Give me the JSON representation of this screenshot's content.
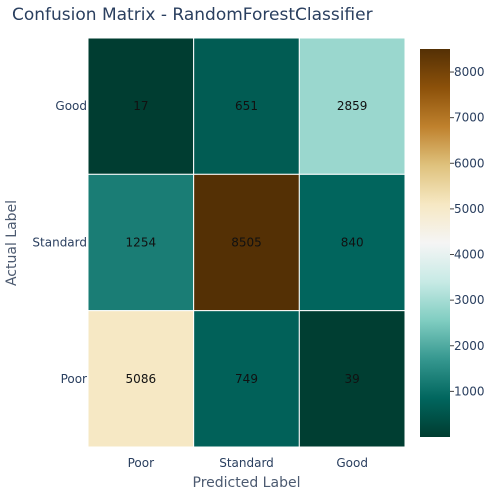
{
  "chart_data": {
    "type": "heatmap",
    "title": "Confusion Matrix - RandomForestClassifier",
    "xlabel": "Predicted Label",
    "ylabel": "Actual Label",
    "x_categories": [
      "Poor",
      "Standard",
      "Good"
    ],
    "y_categories_top_to_bottom": [
      "Good",
      "Standard",
      "Poor"
    ],
    "z_top_to_bottom": [
      [
        17,
        651,
        2859
      ],
      [
        1254,
        8505,
        840
      ],
      [
        5086,
        749,
        39
      ]
    ],
    "colorscale": "BrBG",
    "colorscale_stops": [
      [
        0.0,
        "#003c30"
      ],
      [
        0.1,
        "#01665e"
      ],
      [
        0.2,
        "#35978f"
      ],
      [
        0.3,
        "#80cdc1"
      ],
      [
        0.4,
        "#c7eae5"
      ],
      [
        0.5,
        "#f5f5f5"
      ],
      [
        0.6,
        "#f6e8c3"
      ],
      [
        0.7,
        "#dfc27d"
      ],
      [
        0.8,
        "#bf812d"
      ],
      [
        0.9,
        "#8c510a"
      ],
      [
        1.0,
        "#543005"
      ]
    ],
    "zmin": 0,
    "zmax": 8505,
    "colorbar_ticks": [
      1000,
      2000,
      3000,
      4000,
      5000,
      6000,
      7000,
      8000
    ]
  }
}
